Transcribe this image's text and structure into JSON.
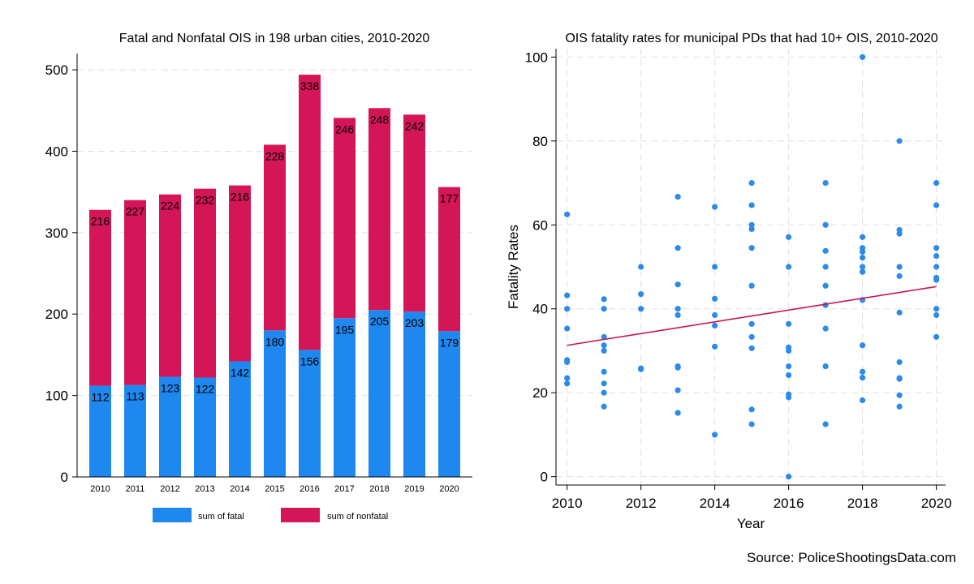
{
  "colors": {
    "fatal": "#1E88F0",
    "nonfatal": "#D41558",
    "scatter_point": "#2A8BEA",
    "trend_line": "#C8174E",
    "gridline": "#E0E0E0",
    "axis": "#000000"
  },
  "source": "Source: PoliceShootingsData.com",
  "chart_data": [
    {
      "type": "bar",
      "stacked": true,
      "title": "Fatal and Nonfatal OIS in 198 urban cities, 2010-2020",
      "xlabel": "",
      "ylabel": "",
      "ylim": [
        0,
        520
      ],
      "yticks": [
        0,
        100,
        200,
        300,
        400,
        500
      ],
      "grid": true,
      "legend_position": "bottom",
      "categories": [
        "2010",
        "2011",
        "2012",
        "2013",
        "2014",
        "2015",
        "2016",
        "2017",
        "2018",
        "2019",
        "2020"
      ],
      "series": [
        {
          "name": "sum of fatal",
          "color_key": "fatal",
          "values": [
            112,
            113,
            123,
            122,
            142,
            180,
            156,
            195,
            205,
            203,
            179
          ]
        },
        {
          "name": "sum of nonfatal",
          "color_key": "nonfatal",
          "values": [
            216,
            227,
            224,
            232,
            216,
            228,
            338,
            246,
            248,
            242,
            177
          ]
        }
      ]
    },
    {
      "type": "scatter",
      "title": "OIS fatality rates for municipal PDs that had 10+ OIS, 2010-2020",
      "xlabel": "Year",
      "ylabel": "Fatality Rates",
      "xlim": [
        2009.7,
        2020.25
      ],
      "ylim": [
        -2,
        102
      ],
      "xticks": [
        2010,
        2012,
        2014,
        2016,
        2018,
        2020
      ],
      "yticks": [
        0,
        20,
        40,
        60,
        80,
        100
      ],
      "grid": true,
      "trend_line": {
        "x": [
          2010,
          2020
        ],
        "y": [
          31.3,
          45.3
        ]
      },
      "points": [
        [
          2010,
          62.5
        ],
        [
          2010,
          43.2
        ],
        [
          2010,
          40
        ],
        [
          2010,
          35.3
        ],
        [
          2010,
          27.8
        ],
        [
          2010,
          27.3
        ],
        [
          2010,
          23.5
        ],
        [
          2010,
          22.2
        ],
        [
          2011,
          42.3
        ],
        [
          2011,
          40
        ],
        [
          2011,
          33.3
        ],
        [
          2011,
          31.3
        ],
        [
          2011,
          30
        ],
        [
          2011,
          25
        ],
        [
          2011,
          22.2
        ],
        [
          2011,
          20
        ],
        [
          2011,
          16.7
        ],
        [
          2012,
          50
        ],
        [
          2012,
          43.5
        ],
        [
          2012,
          40
        ],
        [
          2012,
          25.8
        ],
        [
          2012,
          25.6
        ],
        [
          2013,
          66.7
        ],
        [
          2013,
          54.5
        ],
        [
          2013,
          45.8
        ],
        [
          2013,
          40
        ],
        [
          2013,
          38.5
        ],
        [
          2013,
          26.3
        ],
        [
          2013,
          26
        ],
        [
          2013,
          20.6
        ],
        [
          2013,
          15.2
        ],
        [
          2014,
          64.3
        ],
        [
          2014,
          50
        ],
        [
          2014,
          42.4
        ],
        [
          2014,
          38.5
        ],
        [
          2014,
          36
        ],
        [
          2014,
          31
        ],
        [
          2014,
          10
        ],
        [
          2015,
          70
        ],
        [
          2015,
          64.7
        ],
        [
          2015,
          60
        ],
        [
          2015,
          59
        ],
        [
          2015,
          54.5
        ],
        [
          2015,
          45.5
        ],
        [
          2015,
          36.4
        ],
        [
          2015,
          33.3
        ],
        [
          2015,
          30.6
        ],
        [
          2015,
          16
        ],
        [
          2015,
          12.5
        ],
        [
          2016,
          57.1
        ],
        [
          2016,
          50
        ],
        [
          2016,
          36.4
        ],
        [
          2016,
          30.8
        ],
        [
          2016,
          30
        ],
        [
          2016,
          26.3
        ],
        [
          2016,
          24.2
        ],
        [
          2016,
          19.6
        ],
        [
          2016,
          18.9
        ],
        [
          2016,
          0
        ],
        [
          2017,
          70
        ],
        [
          2017,
          60
        ],
        [
          2017,
          53.8
        ],
        [
          2017,
          50
        ],
        [
          2017,
          45.5
        ],
        [
          2017,
          40.9
        ],
        [
          2017,
          35.3
        ],
        [
          2017,
          26.3
        ],
        [
          2017,
          12.5
        ],
        [
          2018,
          100
        ],
        [
          2018,
          57.1
        ],
        [
          2018,
          54.5
        ],
        [
          2018,
          53.6
        ],
        [
          2018,
          52.2
        ],
        [
          2018,
          50
        ],
        [
          2018,
          48.8
        ],
        [
          2018,
          42.1
        ],
        [
          2018,
          31.3
        ],
        [
          2018,
          25
        ],
        [
          2018,
          23.6
        ],
        [
          2018,
          18.2
        ],
        [
          2019,
          80
        ],
        [
          2019,
          58.8
        ],
        [
          2019,
          57.9
        ],
        [
          2019,
          50
        ],
        [
          2019,
          47.8
        ],
        [
          2019,
          39.1
        ],
        [
          2019,
          27.3
        ],
        [
          2019,
          23.5
        ],
        [
          2019,
          23.3
        ],
        [
          2019,
          19.4
        ],
        [
          2019,
          16.7
        ],
        [
          2020,
          70
        ],
        [
          2020,
          64.7
        ],
        [
          2020,
          54.5
        ],
        [
          2020,
          52.6
        ],
        [
          2020,
          50
        ],
        [
          2020,
          47.4
        ],
        [
          2020,
          46.9
        ],
        [
          2020,
          40
        ],
        [
          2020,
          38.5
        ],
        [
          2020,
          33.3
        ]
      ]
    }
  ]
}
